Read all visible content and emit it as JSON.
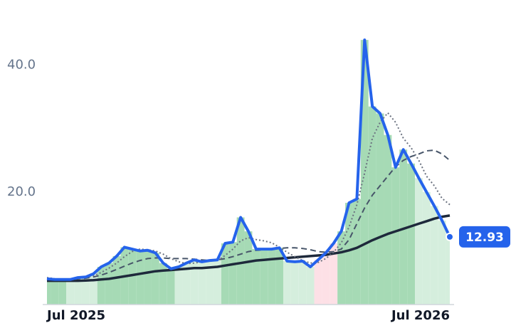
{
  "chart_data": {
    "type": "line",
    "categories": [
      "Jul 2025",
      null,
      null,
      null,
      null,
      null,
      null,
      null,
      null,
      null,
      null,
      null,
      null,
      null,
      null,
      null,
      null,
      null,
      null,
      null,
      null,
      null,
      null,
      null,
      null,
      null,
      null,
      null,
      null,
      null,
      null,
      null,
      null,
      null,
      null,
      null,
      null,
      null,
      null,
      null,
      null,
      null,
      null,
      null,
      null,
      null,
      null,
      null,
      null,
      null,
      null,
      null,
      "Jul 2026"
    ],
    "ylim": [
      2.25,
      50.3
    ],
    "yticks": [
      {
        "value": 20,
        "label": "20.0"
      },
      {
        "value": 40,
        "label": "40.0"
      }
    ],
    "grid": false,
    "area_colors": [
      "#a6dab5",
      "#a6dab5",
      "#a6dab5",
      "#d5eedd",
      "#d5eedd",
      "#d5eedd",
      "#d5eedd",
      "#a6dab5",
      "#a6dab5",
      "#a6dab5",
      "#a6dab5",
      "#a6dab5",
      "#a6dab5",
      "#a6dab5",
      "#a6dab5",
      "#a6dab5",
      "#a6dab5",
      "#d5eedd",
      "#d5eedd",
      "#d5eedd",
      "#d5eedd",
      "#d5eedd",
      "#d5eedd",
      "#a6dab5",
      "#a6dab5",
      "#a6dab5",
      "#a6dab5",
      "#a6dab5",
      "#a6dab5",
      "#a6dab5",
      "#a6dab5",
      "#d5eedd",
      "#d5eedd",
      "#d5eedd",
      "#d5eedd",
      "#fde0e6",
      "#fde0e6",
      "#fde0e6",
      "#a6dab5",
      "#a6dab5",
      "#a6dab5",
      "#a6dab5",
      "#a6dab5",
      "#a6dab5",
      "#a6dab5",
      "#a6dab5",
      "#a6dab5",
      "#a6dab5",
      "#d5eedd",
      "#d5eedd",
      "#d5eedd",
      "#d5eedd",
      "#d5eedd"
    ],
    "series": [
      {
        "color": "#2563eb",
        "style": "solid",
        "values": [
          6.3,
          6.2,
          6.2,
          6.2,
          6.5,
          6.6,
          7.1,
          8.2,
          8.8,
          9.9,
          11.3,
          11.0,
          10.7,
          10.8,
          10.4,
          8.8,
          7.9,
          8.2,
          8.8,
          9.3,
          9.0,
          9.2,
          9.3,
          11.9,
          12.1,
          16.0,
          13.8,
          11.0,
          11.0,
          11.0,
          11.2,
          9.1,
          9.0,
          9.1,
          8.2,
          9.3,
          10.4,
          11.9,
          13.8,
          18.3,
          18.9,
          44.0,
          33.5,
          32.4,
          29.0,
          23.9,
          26.7,
          24.5,
          22.2,
          20.0,
          17.8,
          15.5,
          12.93
        ]
      },
      {
        "color": "#6b7280",
        "style": "dotted",
        "values": [
          6.5,
          6.3,
          6.2,
          6.2,
          6.3,
          6.5,
          6.8,
          7.3,
          8.0,
          8.8,
          9.8,
          10.6,
          11.0,
          10.9,
          10.7,
          10.2,
          9.5,
          9.0,
          8.7,
          8.8,
          9.0,
          9.1,
          9.2,
          10.0,
          11.0,
          12.3,
          12.8,
          12.5,
          12.3,
          12.0,
          11.3,
          10.5,
          9.8,
          9.2,
          8.8,
          8.9,
          9.5,
          10.5,
          12.0,
          14.5,
          18.0,
          23.0,
          28.5,
          31.0,
          32.5,
          31.0,
          28.5,
          27.0,
          25.0,
          22.5,
          21.0,
          19.0,
          18.0
        ]
      },
      {
        "color": "#475569",
        "style": "dashed",
        "values": [
          6.3,
          6.2,
          6.2,
          6.2,
          6.3,
          6.4,
          6.6,
          6.9,
          7.3,
          7.8,
          8.3,
          8.8,
          9.2,
          9.5,
          9.6,
          9.6,
          9.5,
          9.5,
          9.5,
          9.4,
          9.3,
          9.2,
          9.3,
          9.5,
          9.8,
          10.2,
          10.6,
          10.8,
          10.9,
          11.0,
          11.1,
          11.2,
          11.2,
          11.1,
          10.9,
          10.6,
          10.5,
          10.6,
          11.0,
          12.5,
          15.0,
          17.5,
          19.5,
          21.0,
          22.5,
          24.0,
          25.0,
          25.6,
          26.0,
          26.5,
          26.6,
          26.0,
          25.0
        ]
      },
      {
        "color": "#1e293b",
        "style": "solid",
        "values": [
          6.0,
          6.0,
          6.0,
          6.0,
          6.0,
          6.05,
          6.1,
          6.2,
          6.3,
          6.5,
          6.7,
          6.9,
          7.1,
          7.3,
          7.5,
          7.6,
          7.7,
          7.8,
          7.9,
          8.0,
          8.0,
          8.1,
          8.2,
          8.4,
          8.6,
          8.8,
          9.0,
          9.2,
          9.3,
          9.4,
          9.5,
          9.6,
          9.7,
          9.8,
          9.9,
          10.0,
          10.1,
          10.3,
          10.5,
          10.8,
          11.2,
          11.8,
          12.4,
          12.9,
          13.4,
          13.8,
          14.2,
          14.6,
          15.0,
          15.4,
          15.8,
          16.1,
          16.3
        ]
      }
    ]
  }
}
